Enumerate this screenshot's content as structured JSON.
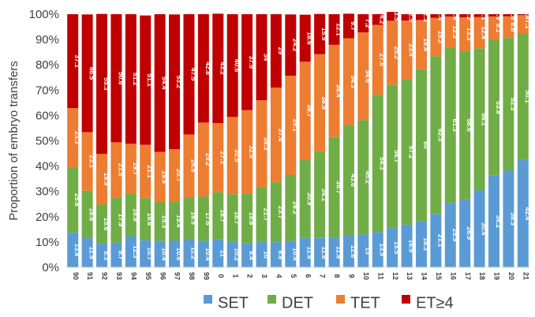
{
  "chart_data": {
    "type": "bar",
    "stacked": "percent",
    "ylabel": "Proportion of embryo transfers",
    "xlabel": "",
    "ylim": [
      0,
      100
    ],
    "yticks": [
      "0%",
      "10%",
      "20%",
      "30%",
      "40%",
      "50%",
      "60%",
      "70%",
      "80%",
      "90%",
      "100%"
    ],
    "grid": false,
    "legend_position": "bottom",
    "categories": [
      "90",
      "91",
      "92",
      "93",
      "94",
      "95",
      "96",
      "97",
      "98",
      "99",
      "0",
      "1",
      "2",
      "3",
      "4",
      "5",
      "6",
      "7",
      "8",
      "9",
      "10",
      "11",
      "12",
      "13",
      "14",
      "15",
      "16",
      "17",
      "18",
      "19",
      "20",
      "21"
    ],
    "series": [
      {
        "name": "SET",
        "color": "#5b9bd5",
        "values": [
          13.8,
          11.5,
          9.3,
          9.7,
          12.3,
          10.7,
          10.4,
          10.6,
          11.2,
          10.4,
          11,
          10.2,
          9.4,
          10,
          9.9,
          10.4,
          11.6,
          11.6,
          11.8,
          12.6,
          13,
          13.9,
          15.5,
          16.9,
          18.3,
          21.1,
          25.5,
          26.9,
          30.4,
          36.2,
          38.3,
          42.4
        ]
      },
      {
        "name": "DET",
        "color": "#70ad47",
        "values": [
          25.8,
          18.8,
          15.6,
          17.9,
          16.8,
          16.6,
          15.3,
          15.4,
          16.5,
          17.6,
          18.7,
          18.7,
          19.8,
          21.7,
          23.7,
          26.2,
          30.9,
          34.1,
          39.7,
          43.6,
          45.2,
          54.3,
          56.7,
          57.2,
          60,
          62.3,
          61.3,
          58.6,
          56.1,
          53.8,
          52.3,
          50.1
        ]
      },
      {
        "name": "TET",
        "color": "#ed7d31",
        "values": [
          23.3,
          23.1,
          19.9,
          21.8,
          19.7,
          21.1,
          19.9,
          20.7,
          24.8,
          29.2,
          27.3,
          30.5,
          32.9,
          34.3,
          37.4,
          39.1,
          38.7,
          38.5,
          36.4,
          34.3,
          34.6,
          27.6,
          25.2,
          23.4,
          19.4,
          15.2,
          12.3,
          13.3,
          12.4,
          9.1,
          8.6,
          7.1
        ]
      },
      {
        "name": "ET≥4",
        "color": "#c00000",
        "values": [
          37.1,
          46.5,
          55.3,
          50.6,
          51.2,
          51.1,
          54.4,
          53.2,
          47.5,
          42.8,
          43.2,
          40.6,
          37.9,
          34,
          29,
          24.2,
          18.6,
          15.9,
          12.1,
          9.7,
          7.2,
          4.2,
          3.5,
          2.5,
          2.3,
          1.4,
          0.9,
          1.2,
          1.1,
          0.9,
          0.8,
          0.4
        ]
      }
    ]
  }
}
